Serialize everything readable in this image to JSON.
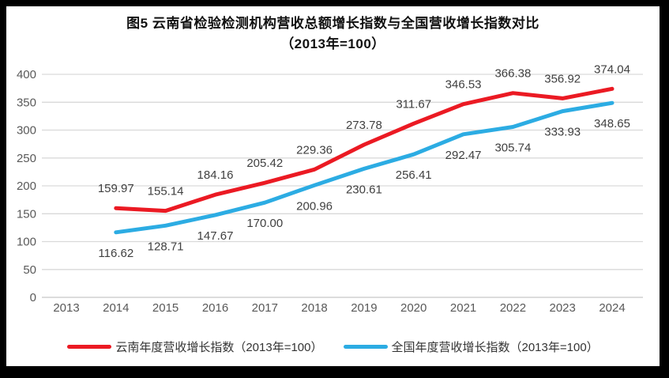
{
  "title": {
    "line1": "图5  云南省检验检测机构营收总额增长指数与全国营收增长指数对比",
    "line2": "（2013年=100）"
  },
  "chart_data": {
    "type": "line",
    "title": "图5 云南省检验检测机构营收总额增长指数与全国营收增长指数对比（2013年=100）",
    "categories": [
      "2013",
      "2014",
      "2015",
      "2016",
      "2017",
      "2018",
      "2019",
      "2020",
      "2021",
      "2022",
      "2023",
      "2024"
    ],
    "series": [
      {
        "name": "云南年度营收增长指数（2013年=100）",
        "color": "#eb1a23",
        "label_position": "above",
        "values": [
          null,
          159.97,
          155.14,
          184.16,
          205.42,
          229.36,
          273.78,
          311.67,
          346.53,
          366.38,
          356.92,
          374.04
        ]
      },
      {
        "name": "全国年度营收增长指数（2013年=100）",
        "color": "#2cace3",
        "label_position": "below",
        "values": [
          null,
          116.62,
          128.71,
          147.67,
          170.0,
          200.96,
          230.61,
          256.41,
          292.47,
          305.74,
          333.93,
          348.65
        ]
      }
    ],
    "xlabel": "",
    "ylabel": "",
    "ylim": [
      0,
      400
    ],
    "yticks": [
      0,
      50,
      100,
      150,
      200,
      250,
      300,
      350,
      400
    ],
    "grid": true,
    "legend_position": "bottom",
    "baseline_note": "2013年=100"
  },
  "colors": {
    "frame": "#000000",
    "background": "#ffffff",
    "gridline": "#d9d9d9",
    "axis_line": "#c6c6c6",
    "tick_label": "#595959",
    "data_label": "#404040",
    "series_red": "#eb1a23",
    "series_blue": "#2cace3"
  }
}
